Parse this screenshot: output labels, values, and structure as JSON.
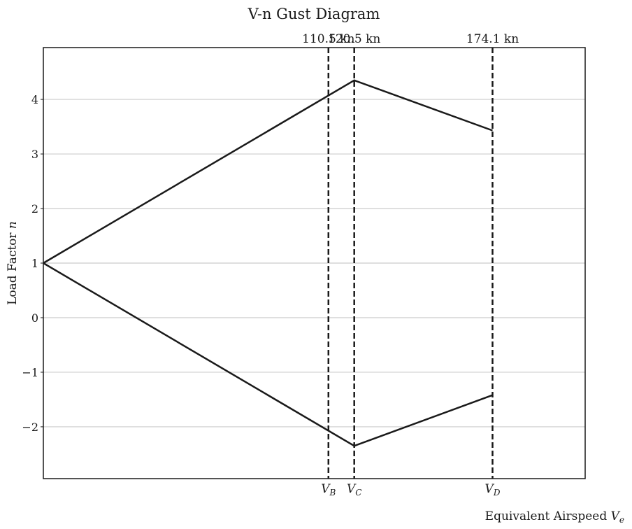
{
  "chart_data": {
    "type": "line",
    "title": "V-n Gust Diagram",
    "xlabel": "Equivalent Airspeed",
    "xlabel_symbol": "V",
    "xlabel_sub": "e",
    "ylabel": "Load Factor",
    "ylabel_symbol": "n",
    "xlim": [
      0,
      210
    ],
    "ylim": [
      -2.95,
      4.95
    ],
    "yticks": [
      -2,
      -1,
      0,
      1,
      2,
      3,
      4
    ],
    "grid": "horizontal",
    "series": [
      {
        "values_x": [
          0,
          120.5,
          174.1
        ],
        "values_y": [
          1,
          4.35,
          3.43
        ]
      },
      {
        "values_x": [
          0,
          120.5,
          174.1
        ],
        "values_y": [
          1,
          -2.35,
          -1.42
        ]
      }
    ],
    "reference_lines": [
      {
        "x": 110.5,
        "top_label": "110.5 kn",
        "symbol": "V",
        "sub": "B"
      },
      {
        "x": 120.5,
        "top_label": "120.5 kn",
        "symbol": "V",
        "sub": "C"
      },
      {
        "x": 174.1,
        "top_label": "174.1 kn",
        "symbol": "V",
        "sub": "D"
      }
    ],
    "colors": {
      "line": "#1a1a1a",
      "grid": "#cccccc",
      "frame": "#1a1a1a"
    }
  }
}
